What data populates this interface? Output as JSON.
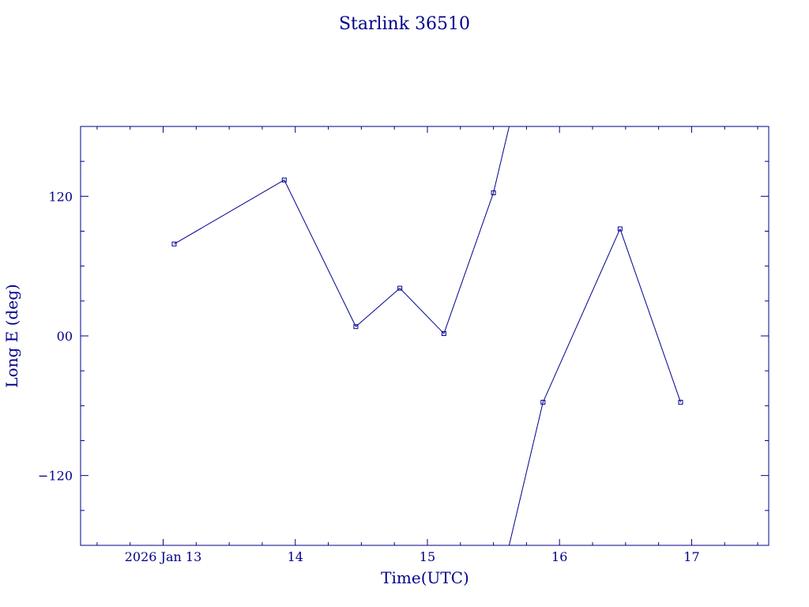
{
  "chart_data": {
    "type": "line",
    "title": "Starlink 36510",
    "xlabel": "Time(UTC)",
    "ylabel": "Long E (deg)",
    "xlim": [
      "2026-01-12T09:00",
      "2026-01-17T14:00"
    ],
    "ylim": [
      -180,
      180
    ],
    "x_ticks": [
      {
        "t": "2026-01-13T00:00",
        "label": "2026 Jan 13"
      },
      {
        "t": "2026-01-14T00:00",
        "label": "14"
      },
      {
        "t": "2026-01-15T00:00",
        "label": "15"
      },
      {
        "t": "2026-01-16T00:00",
        "label": "16"
      },
      {
        "t": "2026-01-17T00:00",
        "label": "17"
      }
    ],
    "y_ticks": [
      {
        "v": 120,
        "label": "120"
      },
      {
        "v": 0,
        "label": "00"
      },
      {
        "v": -120,
        "label": "−120"
      }
    ],
    "series": [
      {
        "color": "#00008b",
        "points": [
          {
            "t": "2026-01-13T02:00",
            "y": 79
          },
          {
            "t": "2026-01-13T22:00",
            "y": 134
          },
          {
            "t": "2026-01-14T11:00",
            "y": 8
          },
          {
            "t": "2026-01-14T19:00",
            "y": 41
          },
          {
            "t": "2026-01-15T03:00",
            "y": 2
          },
          {
            "t": "2026-01-15T12:00",
            "y": 123
          },
          {
            "t": "2026-01-15T21:00",
            "y": -57
          },
          {
            "t": "2026-01-16T11:00",
            "y": 92
          },
          {
            "t": "2026-01-16T22:00",
            "y": -57
          }
        ],
        "wrap": [
          {
            "from_t": "2026-01-15T12:00",
            "from_y": 123,
            "to_t": "2026-01-15T21:00",
            "to_y": -57
          }
        ]
      }
    ],
    "grid": false,
    "legend": "none"
  }
}
